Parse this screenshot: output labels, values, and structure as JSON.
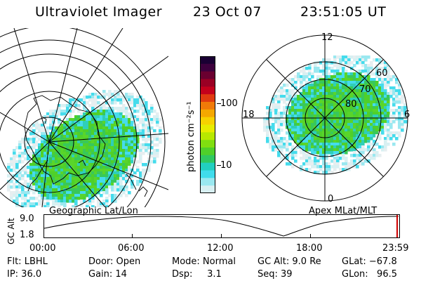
{
  "header": {
    "instrument": "Ultraviolet Imager",
    "date": "23 Oct 07",
    "time": "23:51:05 UT"
  },
  "colorbar": {
    "unit_label": "photon cm⁻²s⁻¹",
    "ticks": [
      "100",
      "10"
    ],
    "colors": [
      "#1a0033",
      "#3d003d",
      "#6a0030",
      "#9a0024",
      "#c4001c",
      "#e03a10",
      "#f07a08",
      "#f5a800",
      "#f7d200",
      "#e8ec00",
      "#b8e800",
      "#80de10",
      "#4fd02a",
      "#30c860",
      "#22cfc0",
      "#40dcec",
      "#9ae8f0",
      "#d8f0f2"
    ]
  },
  "left_panel": {
    "label": "Geographic Lat/Lon"
  },
  "right_panel": {
    "label": "Apex MLat/MLT",
    "mlt_labels": [
      "12",
      "18",
      "6",
      "0"
    ],
    "lat_labels": [
      "60",
      "70",
      "80"
    ]
  },
  "altitude_plot": {
    "ylabel": "GC Alt",
    "yticks": [
      "9.0",
      "1.8"
    ],
    "xticks": [
      "00:00",
      "06:00",
      "12:00",
      "18:00",
      "23:59"
    ]
  },
  "info": {
    "filter": "Flt: LBHL",
    "ip": "IP: 36.0",
    "door": "Door: Open",
    "gain": "Gain: 14",
    "mode": "Mode: Normal",
    "dsp": "Dsp:     3.1",
    "gc_alt": "GC Alt: 9.0 Re",
    "seq": "Seq: 39",
    "glat": "GLat: −67.8",
    "glon": "GLon:   96.5"
  }
}
